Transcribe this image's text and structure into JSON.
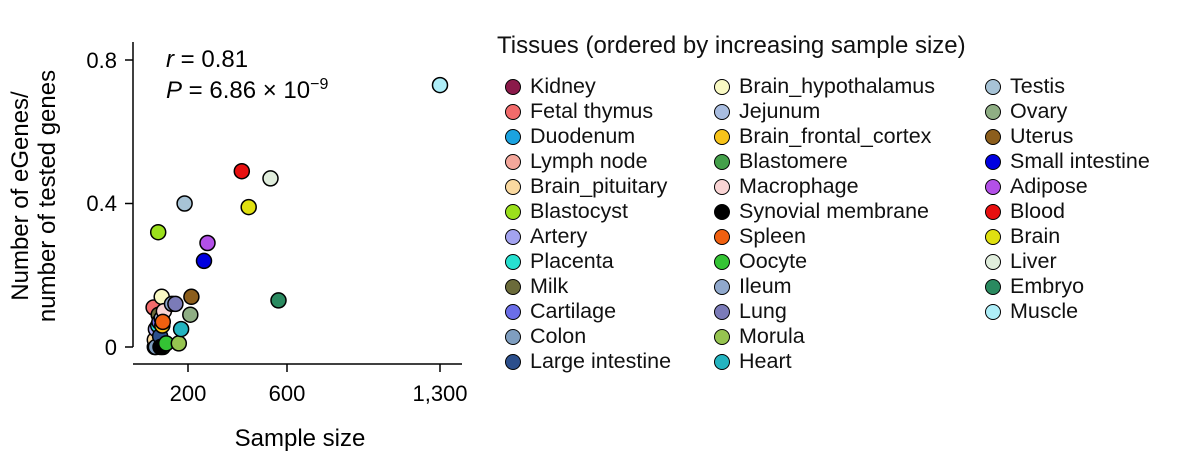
{
  "chart_data": {
    "type": "scatter",
    "xlabel": "Sample size",
    "ylabel_lines": [
      "Number of eGenes/",
      "number of tested genes"
    ],
    "x_ticks": [
      200,
      600,
      1300
    ],
    "x_tick_labels": [
      "200",
      "600",
      "1,300"
    ],
    "y_ticks": [
      0,
      0.4,
      0.8
    ],
    "y_tick_labels": [
      "0",
      "0.4",
      "0.8"
    ],
    "xlim": [
      -15,
      1345
    ],
    "ylim": [
      -0.05,
      0.85
    ],
    "annotation": {
      "r_label": "r",
      "r_value": " = 0.81",
      "p_label": "P",
      "p_value": " = 6.86 × 10",
      "p_exponent": "−9"
    },
    "legend_title": "Tissues (ordered by increasing sample size)",
    "legend_columns": [
      [
        "Kidney",
        "Fetal thymus",
        "Duodenum",
        "Lymph node",
        "Brain_pituitary",
        "Blastocyst",
        "Artery",
        "Placenta",
        "Milk",
        "Cartilage",
        "Colon",
        "Large intestine"
      ],
      [
        "Brain_hypothalamus",
        "Jejunum",
        "Brain_frontal_cortex",
        "Blastomere",
        "Macrophage",
        "Synovial membrane",
        "Spleen",
        "Oocyte",
        "Ileum",
        "Lung",
        "Morula",
        "Heart"
      ],
      [
        "Testis",
        "Ovary",
        "Uterus",
        "Small intestine",
        "Adipose",
        "Blood",
        "Brain",
        "Liver",
        "Embryo",
        "Muscle"
      ]
    ],
    "tissue_colors": {
      "Kidney": "#8b1a4a",
      "Fetal thymus": "#f26b6b",
      "Duodenum": "#1ba3e0",
      "Lymph node": "#f4a79b",
      "Brain_pituitary": "#fad9a0",
      "Blastocyst": "#9be01c",
      "Artery": "#a3a3f0",
      "Placenta": "#27e0d0",
      "Milk": "#6b6b3a",
      "Cartilage": "#6b6ee8",
      "Colon": "#7f9ec0",
      "Large intestine": "#2c4f8c",
      "Brain_hypothalamus": "#f9f9c4",
      "Jejunum": "#a9bde0",
      "Brain_frontal_cortex": "#f7c31a",
      "Blastomere": "#44a04a",
      "Macrophage": "#f9d4d4",
      "Synovial membrane": "#000000",
      "Spleen": "#f06010",
      "Oocyte": "#34c434",
      "Ileum": "#90a8cc",
      "Lung": "#7b7bb8",
      "Morula": "#96c450",
      "Heart": "#24b4c0",
      "Testis": "#a7c3d6",
      "Ovary": "#8fae84",
      "Uterus": "#8c5e1c",
      "Small intestine": "#0000e0",
      "Adipose": "#b350e8",
      "Blood": "#e81010",
      "Brain": "#e0e010",
      "Liver": "#e0eddc",
      "Embryo": "#2a8a60",
      "Muscle": "#aeeef8"
    },
    "points": [
      {
        "tissue": "Kidney",
        "x": 55,
        "y": 0.0
      },
      {
        "tissue": "Fetal thymus",
        "x": 50,
        "y": 0.11
      },
      {
        "tissue": "Duodenum",
        "x": 65,
        "y": 0.04
      },
      {
        "tissue": "Lymph node",
        "x": 70,
        "y": 0.02
      },
      {
        "tissue": "Brain_pituitary",
        "x": 55,
        "y": 0.02
      },
      {
        "tissue": "Blastocyst",
        "x": 70,
        "y": 0.32
      },
      {
        "tissue": "Artery",
        "x": 60,
        "y": 0.05
      },
      {
        "tissue": "Placenta",
        "x": 70,
        "y": 0.06
      },
      {
        "tissue": "Milk",
        "x": 72,
        "y": 0.09
      },
      {
        "tissue": "Cartilage",
        "x": 75,
        "y": 0.07
      },
      {
        "tissue": "Colon",
        "x": 60,
        "y": 0.0
      },
      {
        "tissue": "Large intestine",
        "x": 78,
        "y": 0.03
      },
      {
        "tissue": "Brain_hypothalamus",
        "x": 85,
        "y": 0.14
      },
      {
        "tissue": "Jejunum",
        "x": 85,
        "y": 0.08
      },
      {
        "tissue": "Brain_frontal_cortex",
        "x": 88,
        "y": 0.06
      },
      {
        "tissue": "Blastomere",
        "x": 90,
        "y": 0.0
      },
      {
        "tissue": "Macrophage",
        "x": 95,
        "y": 0.1
      },
      {
        "tissue": "Synovial membrane",
        "x": 80,
        "y": 0.0
      },
      {
        "tissue": "Spleen",
        "x": 90,
        "y": 0.07
      },
      {
        "tissue": "Oocyte",
        "x": 105,
        "y": 0.01
      },
      {
        "tissue": "Ileum",
        "x": 130,
        "y": 0.12
      },
      {
        "tissue": "Lung",
        "x": 145,
        "y": 0.12
      },
      {
        "tissue": "Morula",
        "x": 160,
        "y": 0.01
      },
      {
        "tissue": "Heart",
        "x": 170,
        "y": 0.05
      },
      {
        "tissue": "Testis",
        "x": 185,
        "y": 0.4
      },
      {
        "tissue": "Ovary",
        "x": 210,
        "y": 0.09
      },
      {
        "tissue": "Uterus",
        "x": 215,
        "y": 0.14
      },
      {
        "tissue": "Small intestine",
        "x": 270,
        "y": 0.24
      },
      {
        "tissue": "Adipose",
        "x": 285,
        "y": 0.29
      },
      {
        "tissue": "Blood",
        "x": 435,
        "y": 0.49
      },
      {
        "tissue": "Brain",
        "x": 465,
        "y": 0.39
      },
      {
        "tissue": "Liver",
        "x": 560,
        "y": 0.47
      },
      {
        "tissue": "Embryo",
        "x": 595,
        "y": 0.13
      },
      {
        "tissue": "Muscle",
        "x": 1300,
        "y": 0.73
      }
    ]
  }
}
